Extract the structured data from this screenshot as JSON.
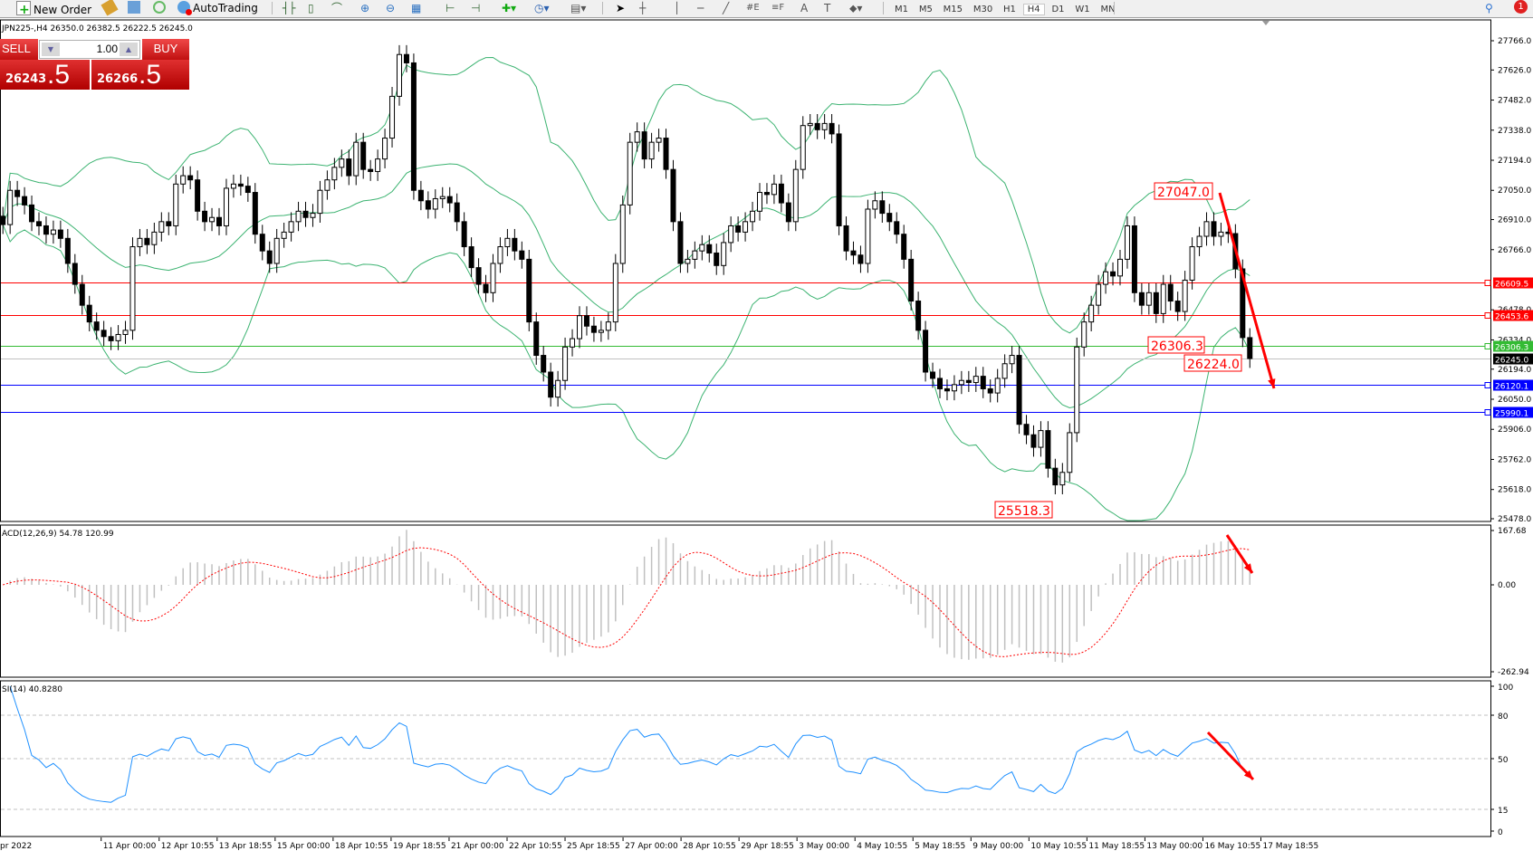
{
  "toolbar": {
    "new_order": "New Order",
    "auto_trading": "AutoTrading",
    "timeframes": [
      "M1",
      "M5",
      "M15",
      "M30",
      "H1",
      "H4",
      "D1",
      "W1",
      "MN"
    ],
    "active_timeframe": "H4",
    "notification_count": "1"
  },
  "chart": {
    "info": "JPN225-,H4  26350.0 26382.5 26222.5 26245.0"
  },
  "trade_panel": {
    "sell_label": "SELL",
    "buy_label": "BUY",
    "lot": "1.00",
    "sell_price_main": "26243",
    "sell_price_frac": ".5",
    "buy_price_main": "26266",
    "buy_price_frac": ".5"
  },
  "chart_data": {
    "type": "candlestick",
    "closes": [
      26886,
      27050,
      27020,
      26980,
      26900,
      26880,
      26840,
      26860,
      26820,
      26700,
      26600,
      26500,
      26420,
      26380,
      26350,
      26330,
      26360,
      26380,
      26780,
      26820,
      26790,
      26850,
      26900,
      26880,
      27080,
      27120,
      27100,
      26950,
      26900,
      26920,
      26880,
      27060,
      27080,
      27070,
      27040,
      26840,
      26760,
      26700,
      26820,
      26850,
      26900,
      26950,
      26920,
      26940,
      27050,
      27100,
      27160,
      27200,
      27120,
      27280,
      27150,
      27140,
      27200,
      27300,
      27500,
      27700,
      27660,
      27050,
      27000,
      26960,
      27010,
      27020,
      26990,
      26900,
      26780,
      26680,
      26600,
      26560,
      26700,
      26780,
      26820,
      26760,
      26720,
      26420,
      26260,
      26180,
      26060,
      26140,
      26300,
      26340,
      26450,
      26400,
      26370,
      26380,
      26420,
      26700,
      26980,
      27280,
      27330,
      27200,
      27280,
      27300,
      27150,
      26900,
      26700,
      26720,
      26760,
      26790,
      26750,
      26690,
      26800,
      26880,
      26850,
      26900,
      26950,
      27040,
      27030,
      27080,
      26990,
      26900,
      27150,
      27360,
      27370,
      27340,
      27370,
      27320,
      26880,
      26760,
      26740,
      26700,
      26960,
      27000,
      26940,
      26900,
      26840,
      26720,
      26520,
      26380,
      26180,
      26150,
      26100,
      26090,
      26120,
      26140,
      26130,
      26160,
      26100,
      26080,
      26150,
      26220,
      26260,
      25930,
      25880,
      25820,
      25900,
      25720,
      25640,
      25700,
      25890,
      26300,
      26420,
      26500,
      26600,
      26660,
      26640,
      26720,
      26880,
      26560,
      26500,
      26560,
      26460,
      26600,
      26520,
      26470,
      26620,
      26780,
      26830,
      26900,
      26830,
      26850,
      26843,
      26674,
      26345,
      26245
    ],
    "price_axis": {
      "min": 25478.0,
      "max": 27766.0,
      "ticks": [
        "27766.0",
        "27626.0",
        "27482.0",
        "27338.0",
        "27194.0",
        "27050.0",
        "26910.0",
        "26766.0",
        "26478.0",
        "26334.0",
        "26194.0",
        "26050.0",
        "25906.0",
        "25762.0",
        "25618.0",
        "25478.0"
      ]
    },
    "horizontal_lines": [
      {
        "value": "26609.5",
        "color": "#ff0000"
      },
      {
        "value": "26453.6",
        "color": "#ff0000"
      },
      {
        "value": "26306.3",
        "color": "#33bb33"
      },
      {
        "value": "26245.0",
        "color": "#000000",
        "line_color": "#c0c0c0"
      },
      {
        "value": "26120.1",
        "color": "#0000ff"
      },
      {
        "value": "25990.1",
        "color": "#0000ff"
      }
    ],
    "price_annotations": [
      "27047.0",
      "26306.3",
      "26224.0",
      "25518.3"
    ],
    "bollinger_color": "#3cb371",
    "time_labels": [
      "pr 2022",
      "11 Apr 00:00",
      "12 Apr 10:55",
      "13 Apr 18:55",
      "15 Apr 00:00",
      "18 Apr 10:55",
      "19 Apr 18:55",
      "21 Apr 00:00",
      "22 Apr 10:55",
      "25 Apr 18:55",
      "27 Apr 00:00",
      "28 Apr 10:55",
      "29 Apr 18:55",
      "3 May 00:00",
      "4 May 10:55",
      "5 May 18:55",
      "9 May 00:00",
      "10 May 10:55",
      "11 May 18:55",
      "13 May 00:00",
      "16 May 10:55",
      "17 May 18:55"
    ],
    "macd": {
      "label": "ACD(12,26,9) 54.78 120.99",
      "ticks": [
        "167.68",
        "0.00",
        "-262.94"
      ],
      "range": [
        -262.94,
        167.68
      ],
      "signal_color": "#ff0000",
      "hist_color": "#c0c0c0"
    },
    "rsi": {
      "label": "SI(14) 40.8280",
      "ticks": [
        "100",
        "80",
        "50",
        "15",
        "0"
      ],
      "levels": [
        80,
        50,
        15
      ],
      "color": "#1e90ff"
    },
    "arrow_color": "#ff0000"
  }
}
